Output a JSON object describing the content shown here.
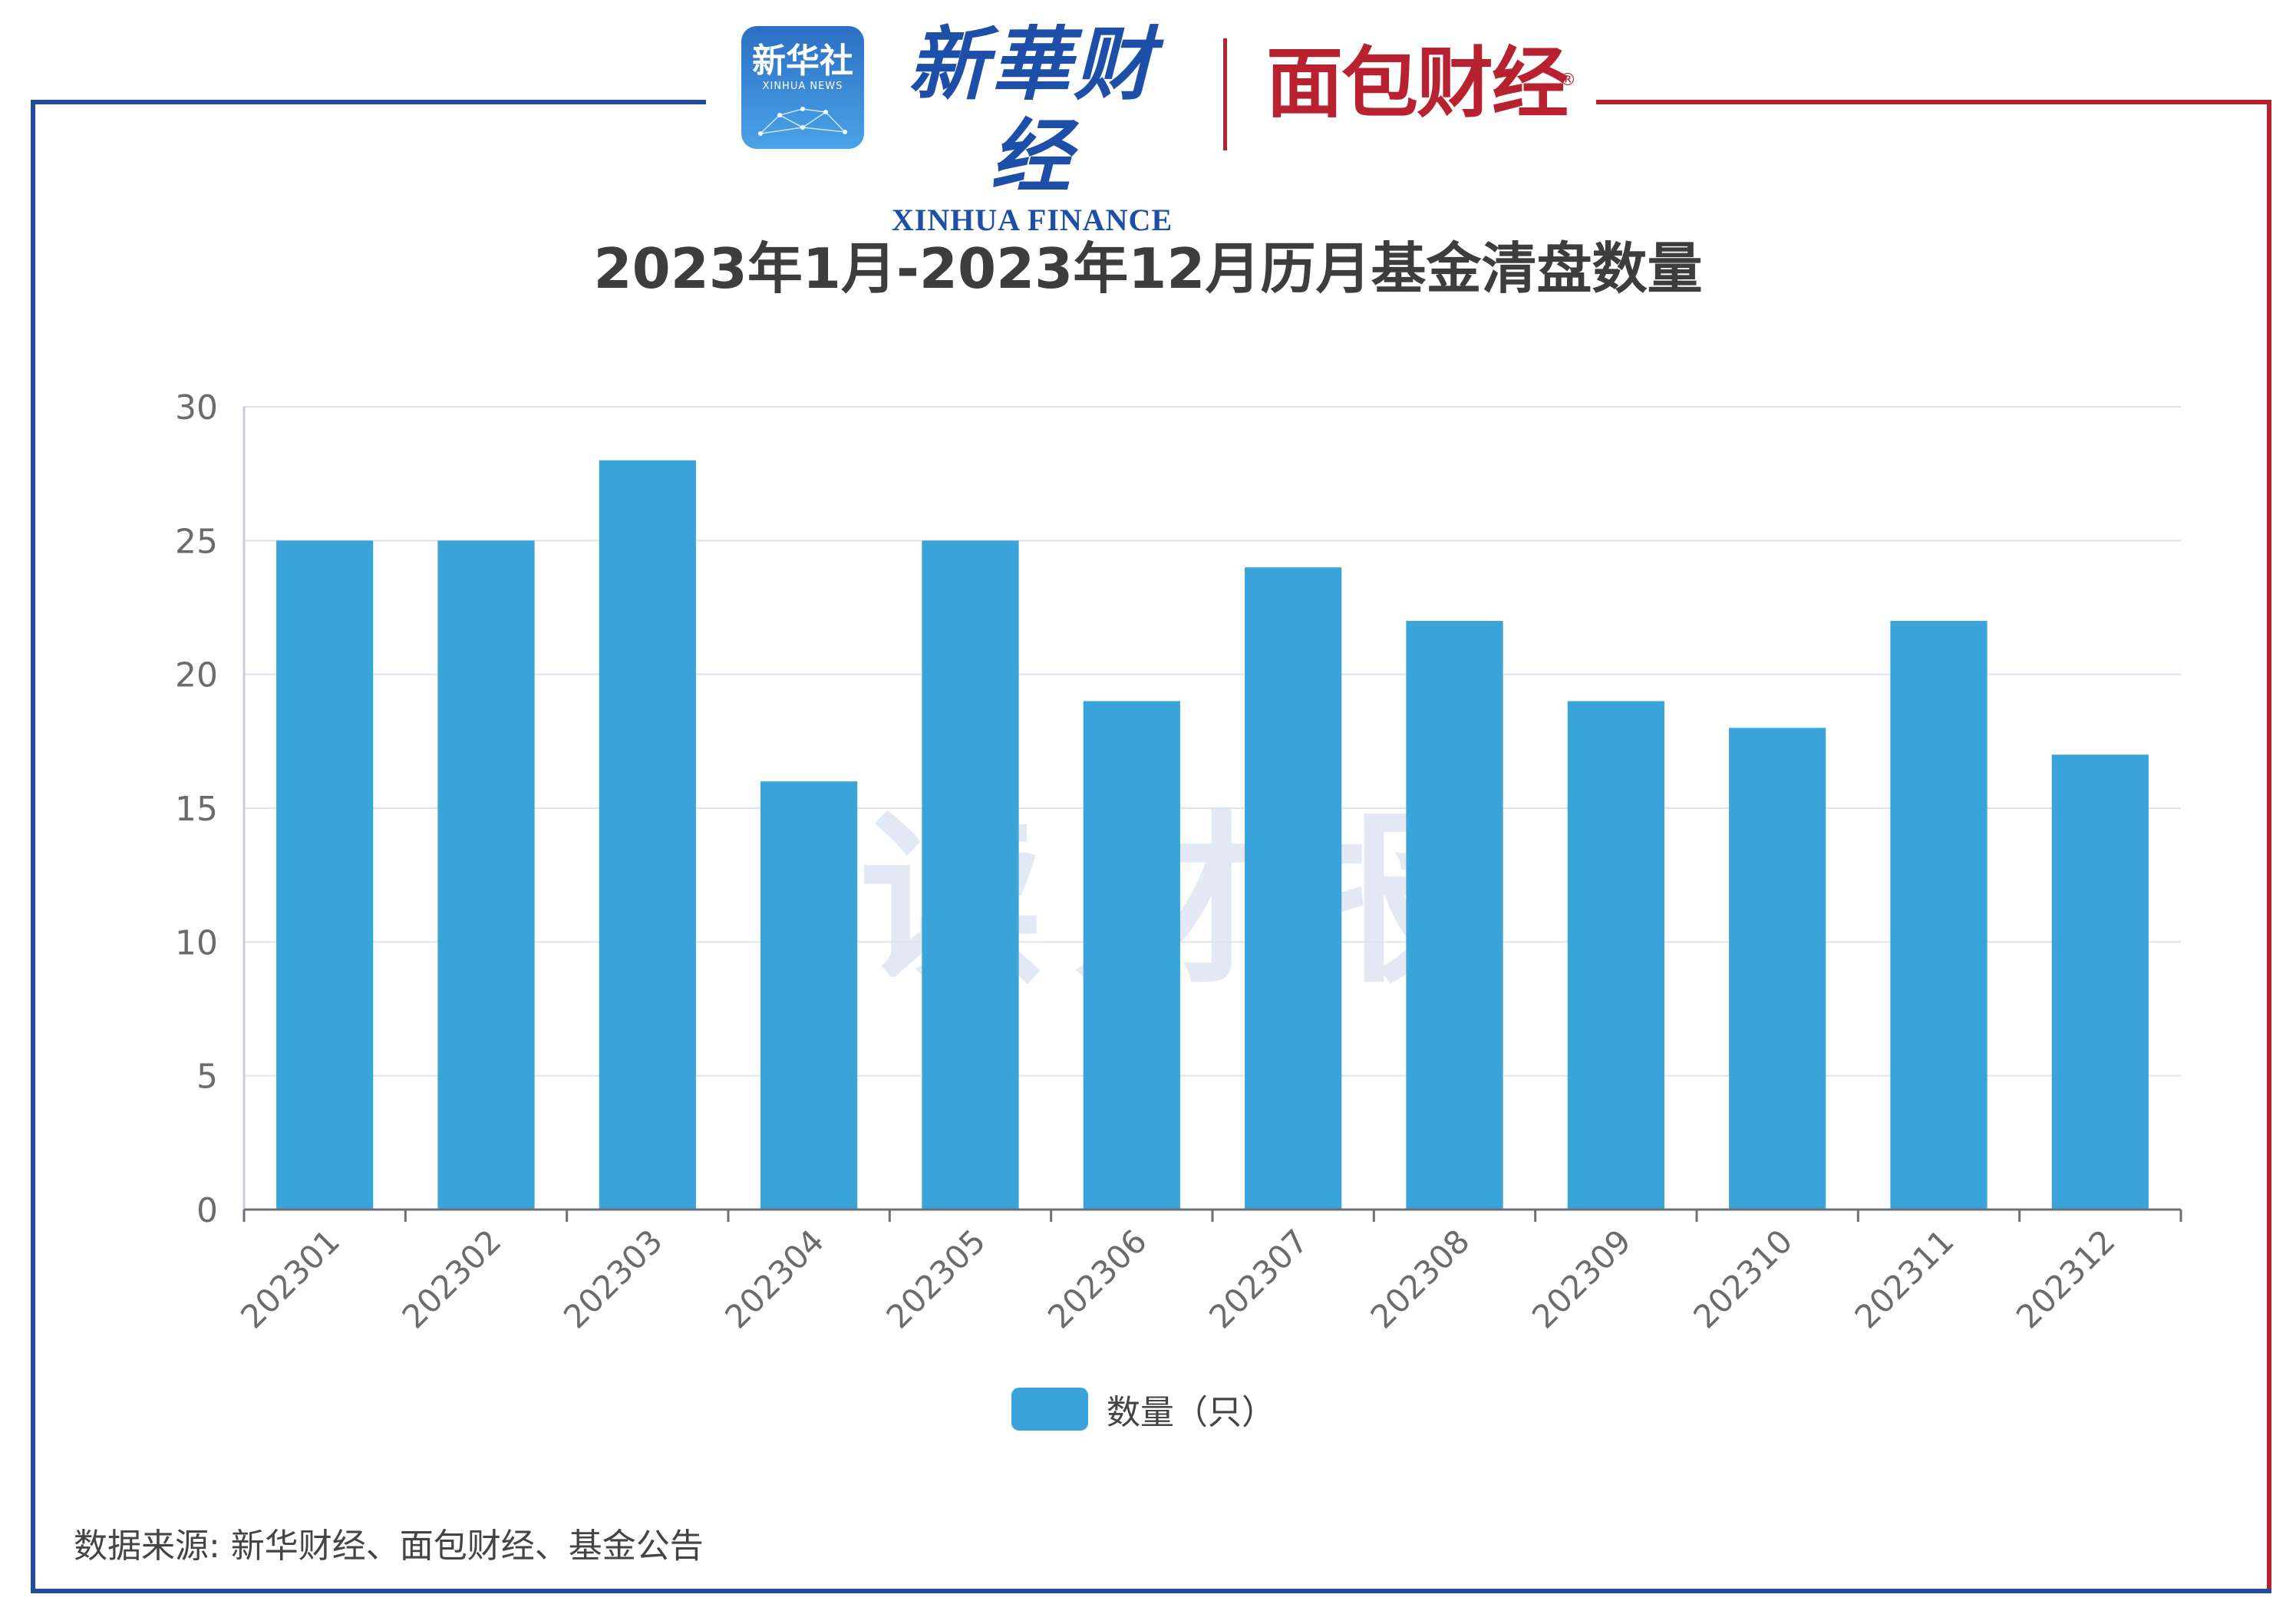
{
  "header": {
    "xinhua_logo_text": "新华社",
    "xinhua_logo_sub": "XINHUA NEWS",
    "xinhua_finance_cn": "新華财经",
    "xinhua_finance_en": "XINHUA FINANCE",
    "mianbao_text": "面包财经",
    "registered_mark": "®"
  },
  "watermark": "读财报",
  "source_note": "数据来源: 新华财经、面包财经、基金公告",
  "colors": {
    "bar": "#3aa3da",
    "frame_left": "#1f4e96",
    "frame_right": "#b8212f",
    "grid": "#dde3ee"
  },
  "chart_data": {
    "type": "bar",
    "title": "2023年1月-2023年12月历月基金清盘数量",
    "categories": [
      "202301",
      "202302",
      "202303",
      "202304",
      "202305",
      "202306",
      "202307",
      "202308",
      "202309",
      "202310",
      "202311",
      "202312"
    ],
    "series": [
      {
        "name": "数量（只）",
        "values": [
          25,
          25,
          28,
          16,
          25,
          19,
          24,
          22,
          19,
          18,
          22,
          17
        ]
      }
    ],
    "ylim": [
      0,
      30
    ],
    "yticks": [
      0,
      5,
      10,
      15,
      20,
      25,
      30
    ],
    "xlabel": "",
    "ylabel": "",
    "grid": true,
    "legend_position": "bottom-center"
  }
}
